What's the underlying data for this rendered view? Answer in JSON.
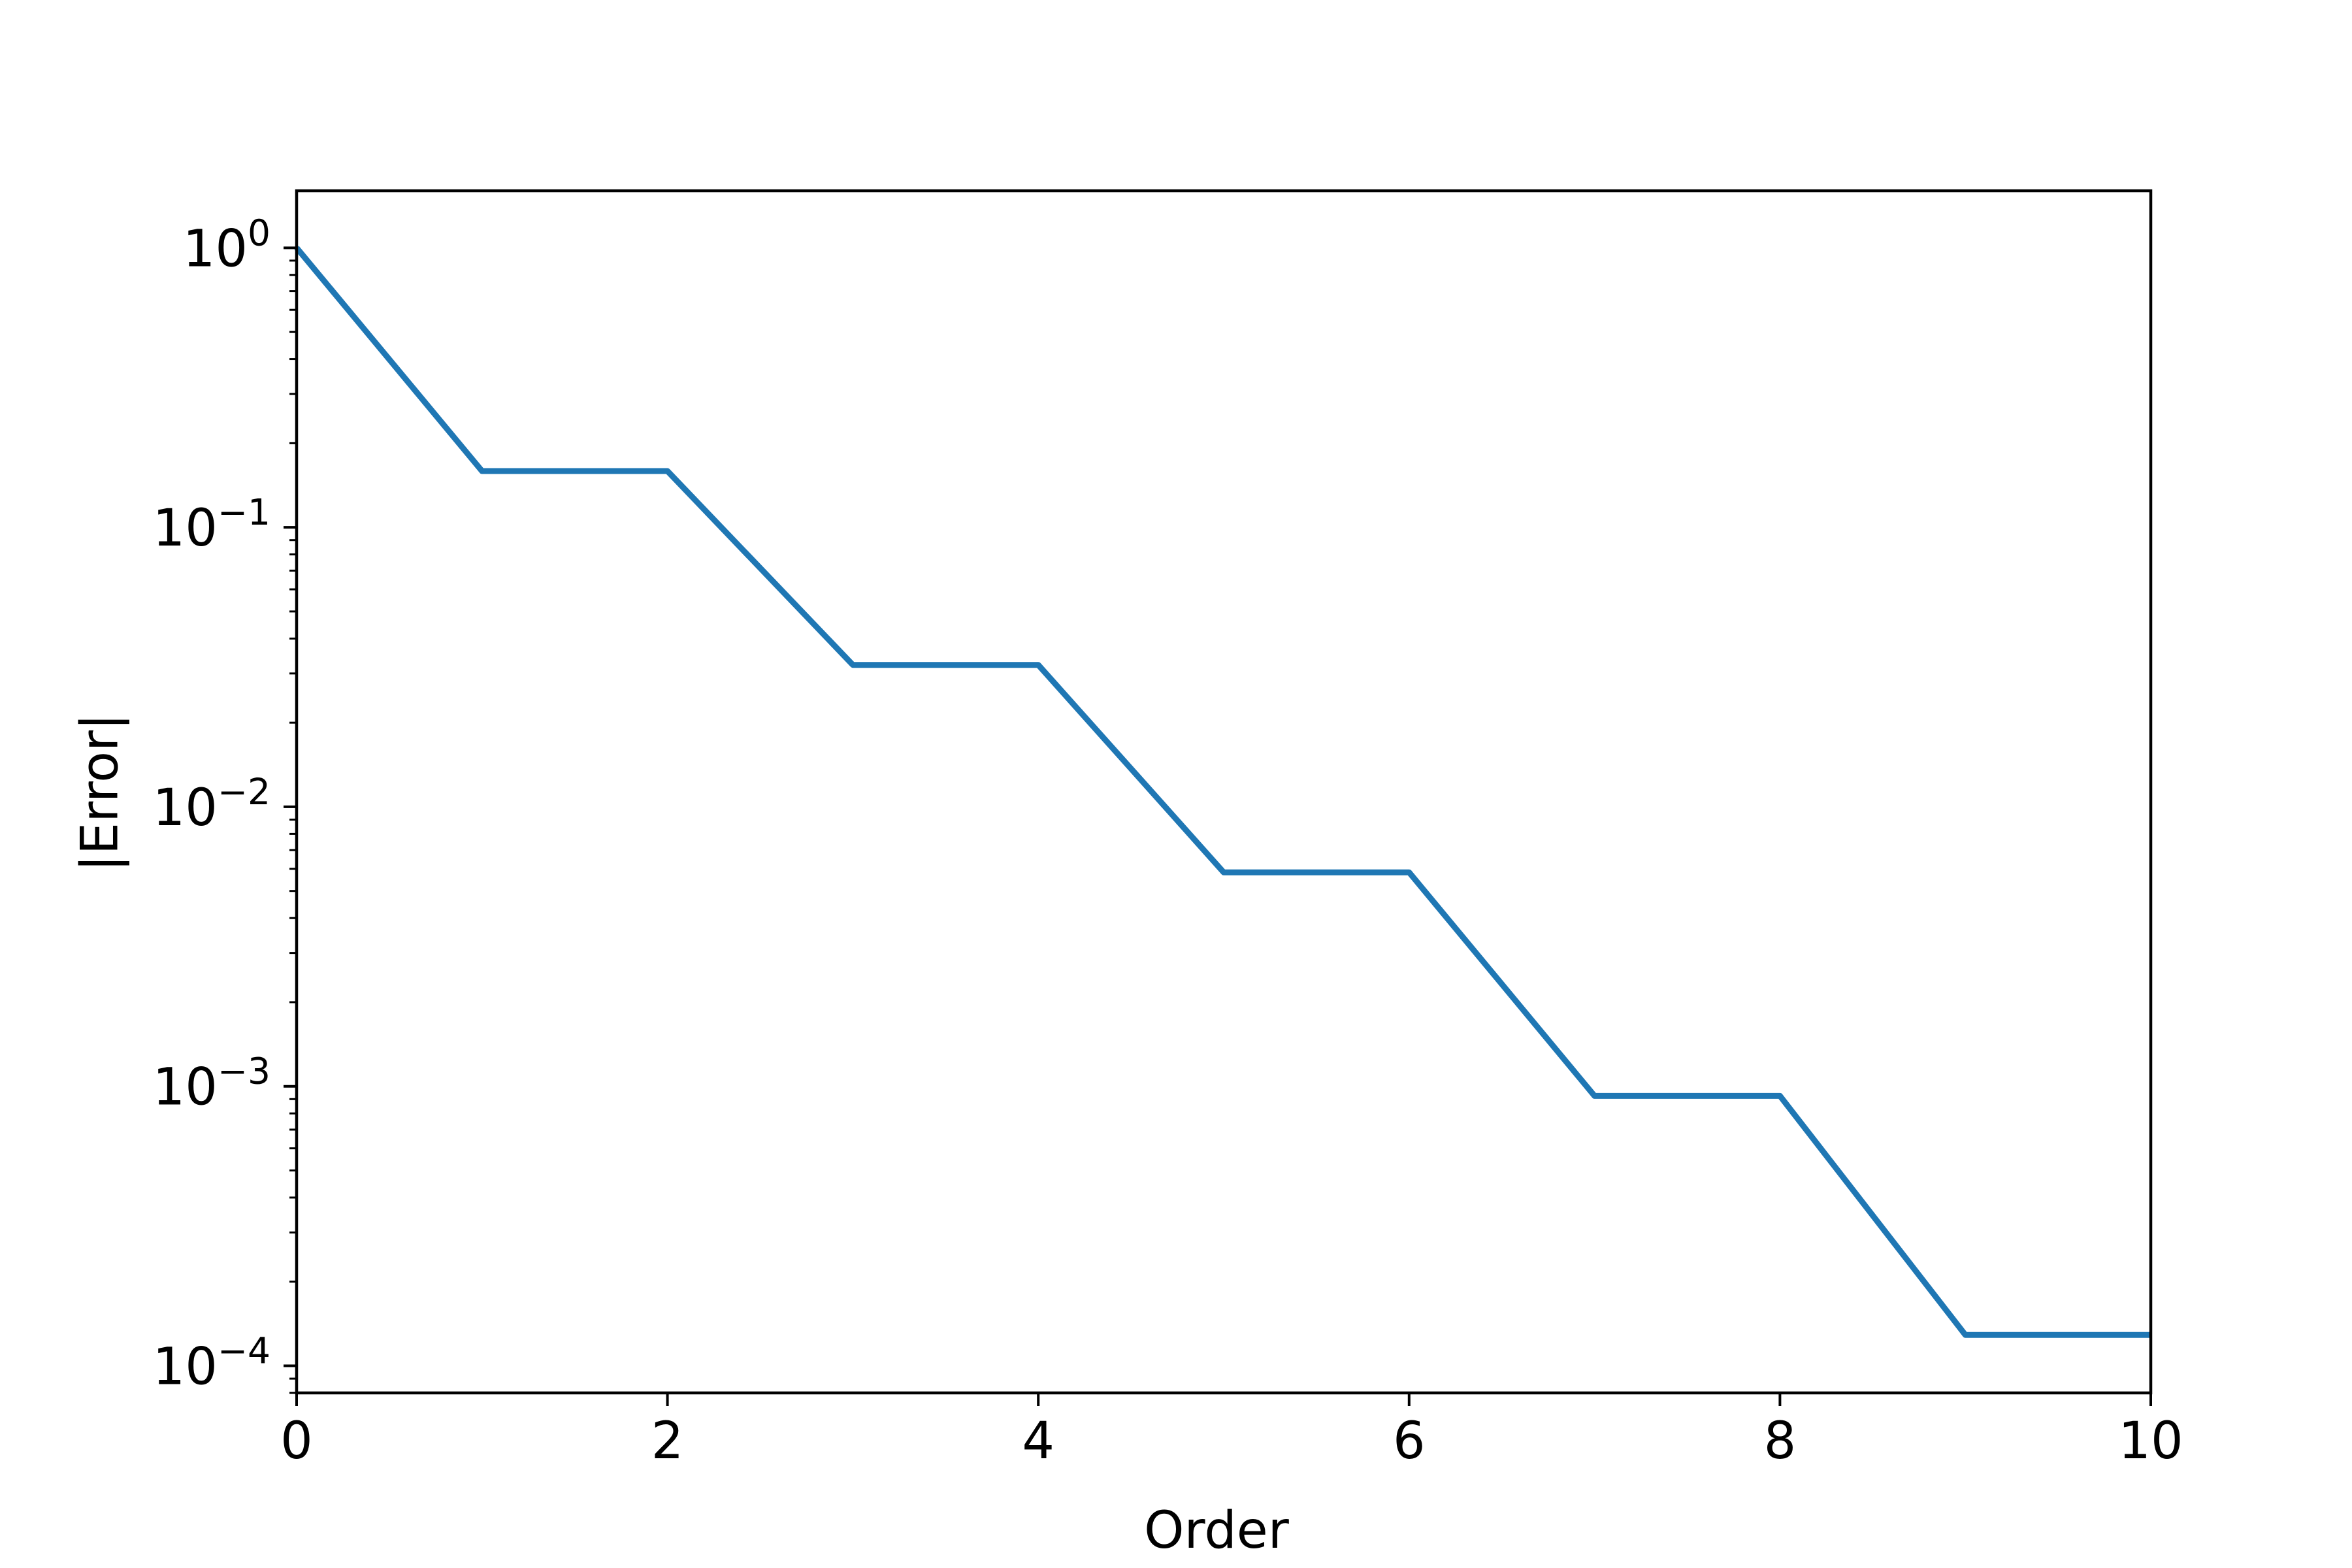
{
  "chart_data": {
    "type": "line",
    "title": "",
    "xlabel": "Order",
    "ylabel": "|Error|",
    "xlim": [
      0,
      10
    ],
    "ylim": [
      8e-05,
      1.6
    ],
    "yscale": "log",
    "grid": false,
    "xticks": [
      0,
      2,
      4,
      6,
      8,
      10
    ],
    "yticks": [
      {
        "value": 1,
        "base": "10",
        "exp": "0"
      },
      {
        "value": 0.1,
        "base": "10",
        "exp": "−1"
      },
      {
        "value": 0.01,
        "base": "10",
        "exp": "−2"
      },
      {
        "value": 0.001,
        "base": "10",
        "exp": "−3"
      },
      {
        "value": 0.0001,
        "base": "10",
        "exp": "−4"
      }
    ],
    "series": [
      {
        "color": "#1f77b4",
        "x": [
          0,
          1,
          2,
          3,
          4,
          5,
          6,
          7,
          8,
          9,
          10
        ],
        "y": [
          1.0,
          0.159,
          0.159,
          0.0322,
          0.0322,
          0.00583,
          0.00583,
          0.000924,
          0.000924,
          0.000129,
          0.000129
        ]
      }
    ]
  }
}
